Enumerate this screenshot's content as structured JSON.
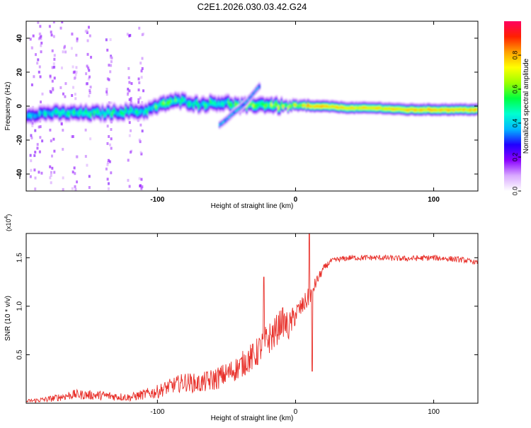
{
  "title": "C2E1.2026.030.03.42.G24",
  "colors": {
    "snr_line": "#e8302a",
    "frame": "#000000"
  },
  "chart_data": [
    {
      "type": "heatmap",
      "xlabel": "Height of straight line (km)",
      "ylabel": "Frequency (Hz)",
      "xlim": [
        -195,
        132
      ],
      "ylim": [
        -50,
        50
      ],
      "x_ticks": [
        -100,
        0,
        100
      ],
      "x_tick_labels": [
        "-100",
        "0",
        "100"
      ],
      "y_ticks": [
        -40,
        -20,
        0,
        20,
        40
      ],
      "y_tick_labels": [
        "-40",
        "-20",
        "0",
        "20",
        "40"
      ],
      "colorbar": {
        "label": "Normalized spectral amplitude",
        "range": [
          0,
          1
        ],
        "ticks": [
          0,
          0.2,
          0.4,
          0.6,
          0.8
        ],
        "tick_labels": [
          "0.0",
          "0.2",
          "0.4",
          "0.6",
          "0.8"
        ],
        "colors": [
          "#ffffff",
          "#d9a9ff",
          "#8a00ff",
          "#2000ff",
          "#00b7ff",
          "#00ffd0",
          "#00ff40",
          "#9aff00",
          "#ffff00",
          "#ffa000",
          "#ff2000",
          "#ff0060"
        ]
      },
      "ridge": {
        "x": [
          -195,
          -180,
          -160,
          -140,
          -120,
          -110,
          -100,
          -90,
          -80,
          -70,
          -60,
          -50,
          -40,
          -30,
          -20,
          -10,
          0,
          20,
          40,
          60,
          80,
          100,
          132
        ],
        "freq": [
          -5,
          -4,
          -4,
          -4,
          -3,
          -3,
          0,
          3,
          3,
          1,
          2,
          2,
          0,
          1,
          1,
          0,
          0,
          0,
          -1,
          -1,
          -2,
          -2,
          -2
        ],
        "amplitude": [
          0.35,
          0.45,
          0.5,
          0.5,
          0.5,
          0.45,
          0.55,
          0.55,
          0.5,
          0.5,
          0.5,
          0.5,
          0.55,
          0.6,
          0.6,
          0.7,
          0.75,
          0.8,
          0.75,
          0.75,
          0.8,
          0.8,
          0.8
        ]
      },
      "secondary_track": {
        "x": [
          -55,
          -50,
          -45,
          -40,
          -35,
          -30,
          -26
        ],
        "freq": [
          -11,
          -8,
          -4,
          -1,
          3,
          8,
          12
        ],
        "amplitude": 0.4
      }
    },
    {
      "type": "line",
      "xlabel": "Height of straight line (km)",
      "ylabel": "SNR (10 * v/v)",
      "scale_note": "(x10",
      "scale_exp": "4",
      "scale_close": ")",
      "xlim": [
        -195,
        132
      ],
      "ylim": [
        0,
        1.75
      ],
      "x_ticks": [
        -100,
        0,
        100
      ],
      "x_tick_labels": [
        "-100",
        "0",
        "100"
      ],
      "y_ticks": [
        0.5,
        1.0,
        1.5
      ],
      "y_tick_labels": [
        "0.5",
        "1.0",
        "1.5"
      ],
      "series": [
        {
          "x": [
            -195,
            -180,
            -160,
            -140,
            -120,
            -100,
            -90,
            -80,
            -70,
            -60,
            -50,
            -40,
            -35,
            -30,
            -25,
            -20,
            -15,
            -10,
            -5,
            0,
            5,
            10,
            15,
            20,
            25,
            30,
            40,
            60,
            80,
            100,
            120,
            132
          ],
          "values": [
            0.02,
            0.04,
            0.09,
            0.08,
            0.06,
            0.12,
            0.18,
            0.22,
            0.2,
            0.24,
            0.3,
            0.38,
            0.45,
            0.48,
            0.58,
            0.66,
            0.72,
            0.85,
            0.78,
            0.92,
            1.0,
            1.1,
            1.25,
            1.38,
            1.46,
            1.48,
            1.5,
            1.5,
            1.49,
            1.5,
            1.48,
            1.45
          ],
          "noise": [
            0.02,
            0.03,
            0.05,
            0.05,
            0.04,
            0.07,
            0.08,
            0.1,
            0.1,
            0.12,
            0.12,
            0.13,
            0.15,
            0.15,
            0.16,
            0.17,
            0.17,
            0.15,
            0.15,
            0.12,
            0.1,
            0.1,
            0.06,
            0.04,
            0.03,
            0.03,
            0.03,
            0.03,
            0.03,
            0.03,
            0.03,
            0.02
          ]
        }
      ],
      "spikes": [
        {
          "x": -23,
          "value": 1.3
        },
        {
          "x": 10,
          "value": 1.75
        },
        {
          "x": 12,
          "value": 0.33
        }
      ]
    }
  ]
}
